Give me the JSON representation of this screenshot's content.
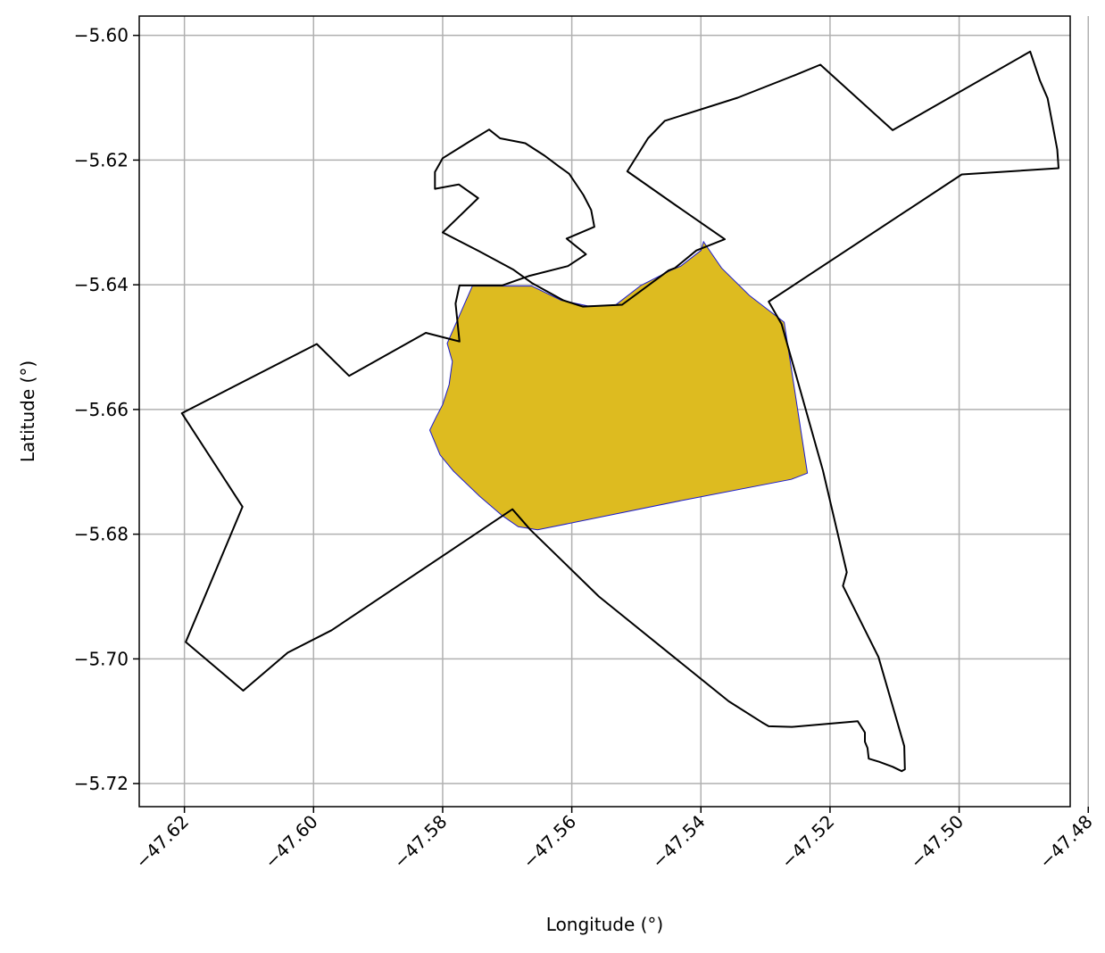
{
  "chart_data": {
    "type": "map",
    "xlabel": "Longitude (°)",
    "ylabel": "Latitude (°)",
    "xlim": [
      -47.627,
      -47.4828
    ],
    "ylim": [
      -5.7237,
      -5.5969
    ],
    "grid": true,
    "x_ticks": [
      -47.62,
      -47.6,
      -47.58,
      -47.56,
      -47.54,
      -47.52,
      -47.5,
      -47.48
    ],
    "x_tick_labels": [
      "−47.62",
      "−47.60",
      "−47.58",
      "−47.56",
      "−47.54",
      "−47.52",
      "−47.50",
      "−47.48"
    ],
    "y_ticks": [
      -5.6,
      -5.62,
      -5.64,
      -5.66,
      -5.68,
      -5.7,
      -5.72
    ],
    "y_tick_labels": [
      "−5.60",
      "−5.62",
      "−5.64",
      "−5.66",
      "−5.68",
      "−5.70",
      "−5.72"
    ],
    "colors": {
      "highlight_fill": "#ddbb20",
      "highlight_edge": "#1a1ad0",
      "outline": "#000000",
      "grid": "#b0b0b0"
    },
    "outline_polygon": [
      [
        -47.5728,
        -5.6151
      ],
      [
        -47.5758,
        -5.617
      ],
      [
        -47.58,
        -5.6197
      ],
      [
        -47.5812,
        -5.6219
      ],
      [
        -47.5812,
        -5.6246
      ],
      [
        -47.5775,
        -5.6239
      ],
      [
        -47.5745,
        -5.6261
      ],
      [
        -47.58,
        -5.6316
      ],
      [
        -47.5744,
        -5.6346
      ],
      [
        -47.569,
        -5.6376
      ],
      [
        -47.5662,
        -5.6397
      ],
      [
        -47.5613,
        -5.6425
      ],
      [
        -47.5583,
        -5.6435
      ],
      [
        -47.5522,
        -5.6432
      ],
      [
        -47.545,
        -5.6377
      ],
      [
        -47.544,
        -5.6373
      ],
      [
        -47.5407,
        -5.6345
      ],
      [
        -47.5363,
        -5.6327
      ],
      [
        -47.5441,
        -5.6271
      ],
      [
        -47.5514,
        -5.6218
      ],
      [
        -47.5482,
        -5.6165
      ],
      [
        -47.5456,
        -5.6137
      ],
      [
        -47.5343,
        -5.61
      ],
      [
        -47.5255,
        -5.6064
      ],
      [
        -47.5215,
        -5.6047
      ],
      [
        -47.5103,
        -5.6152
      ],
      [
        -47.489,
        -5.6026
      ],
      [
        -47.4875,
        -5.6072
      ],
      [
        -47.4863,
        -5.6101
      ],
      [
        -47.4848,
        -5.6183
      ],
      [
        -47.4846,
        -5.6213
      ],
      [
        -47.4996,
        -5.6223
      ],
      [
        -47.5295,
        -5.6427
      ],
      [
        -47.5275,
        -5.6463
      ],
      [
        -47.5211,
        -5.6698
      ],
      [
        -47.5174,
        -5.6861
      ],
      [
        -47.518,
        -5.6883
      ],
      [
        -47.5125,
        -5.6997
      ],
      [
        -47.5085,
        -5.714
      ],
      [
        -47.5084,
        -5.7177
      ],
      [
        -47.5089,
        -5.718
      ],
      [
        -47.5103,
        -5.7173
      ],
      [
        -47.5124,
        -5.7165
      ],
      [
        -47.514,
        -5.716
      ],
      [
        -47.5142,
        -5.7143
      ],
      [
        -47.5146,
        -5.7133
      ],
      [
        -47.5146,
        -5.7118
      ],
      [
        -47.5157,
        -5.71
      ],
      [
        -47.5259,
        -5.7109
      ],
      [
        -47.5295,
        -5.7108
      ],
      [
        -47.5305,
        -5.7102
      ],
      [
        -47.5357,
        -5.7068
      ],
      [
        -47.5558,
        -5.69
      ],
      [
        -47.5664,
        -5.6793
      ],
      [
        -47.5692,
        -5.676
      ],
      [
        -47.5972,
        -5.6954
      ],
      [
        -47.604,
        -5.699
      ],
      [
        -47.6109,
        -5.7051
      ],
      [
        -47.6198,
        -5.6973
      ],
      [
        -47.611,
        -5.6756
      ],
      [
        -47.6204,
        -5.6606
      ],
      [
        -47.5995,
        -5.6495
      ],
      [
        -47.5945,
        -5.6546
      ],
      [
        -47.5826,
        -5.6477
      ],
      [
        -47.5774,
        -5.6491
      ],
      [
        -47.578,
        -5.643
      ],
      [
        -47.5774,
        -5.6401
      ],
      [
        -47.574,
        -5.6401
      ],
      [
        -47.5708,
        -5.6401
      ],
      [
        -47.5667,
        -5.6386
      ],
      [
        -47.5606,
        -5.637
      ],
      [
        -47.5578,
        -5.6351
      ],
      [
        -47.5608,
        -5.6326
      ],
      [
        -47.5565,
        -5.6307
      ],
      [
        -47.557,
        -5.628
      ],
      [
        -47.5582,
        -5.6256
      ],
      [
        -47.5604,
        -5.6222
      ],
      [
        -47.562,
        -5.621
      ],
      [
        -47.5642,
        -5.6193
      ],
      [
        -47.5672,
        -5.6173
      ],
      [
        -47.5711,
        -5.6165
      ],
      [
        -47.5728,
        -5.6151
      ]
    ],
    "highlight_polygon": [
      [
        -47.5793,
        -5.6494
      ],
      [
        -47.5754,
        -5.6402
      ],
      [
        -47.5662,
        -5.6402
      ],
      [
        -47.5616,
        -5.6425
      ],
      [
        -47.5575,
        -5.6434
      ],
      [
        -47.5533,
        -5.6433
      ],
      [
        -47.5493,
        -5.6401
      ],
      [
        -47.5447,
        -5.6377
      ],
      [
        -47.5431,
        -5.637
      ],
      [
        -47.54,
        -5.6345
      ],
      [
        -47.5396,
        -5.6331
      ],
      [
        -47.5368,
        -5.6373
      ],
      [
        -47.5325,
        -5.6417
      ],
      [
        -47.5271,
        -5.646
      ],
      [
        -47.5235,
        -5.6702
      ],
      [
        -47.526,
        -5.6712
      ],
      [
        -47.5425,
        -5.6745
      ],
      [
        -47.5653,
        -5.6793
      ],
      [
        -47.5683,
        -5.6788
      ],
      [
        -47.5708,
        -5.677
      ],
      [
        -47.5743,
        -5.6739
      ],
      [
        -47.5783,
        -5.6699
      ],
      [
        -47.5804,
        -5.6673
      ],
      [
        -47.582,
        -5.6633
      ],
      [
        -47.581,
        -5.6612
      ],
      [
        -47.58,
        -5.6592
      ],
      [
        -47.579,
        -5.656
      ],
      [
        -47.5785,
        -5.6523
      ],
      [
        -47.5793,
        -5.6494
      ]
    ]
  }
}
